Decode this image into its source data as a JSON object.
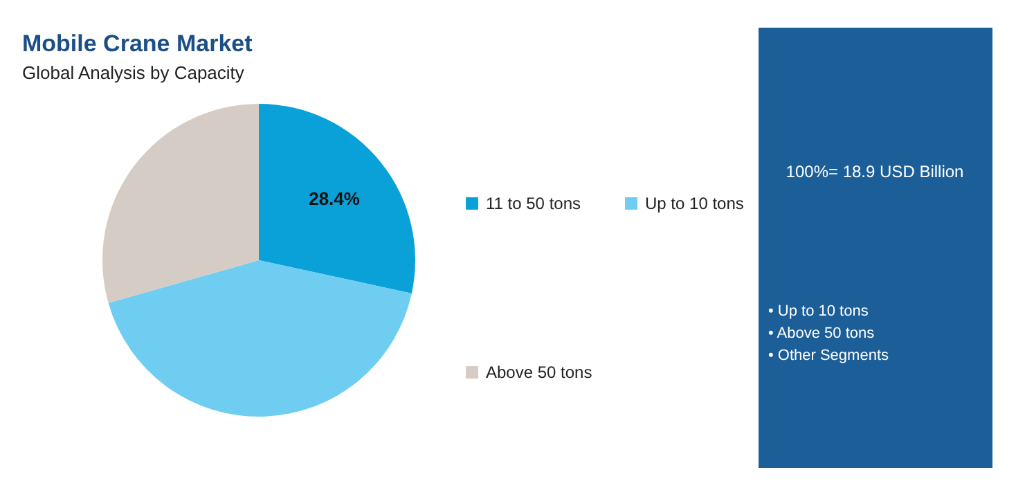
{
  "chart_data": {
    "type": "pie",
    "title": "Mobile Crane Market",
    "subtitle": "Global Analysis by Capacity",
    "categories": [
      "11 to 50 tons",
      "Up to 10 tons",
      "Above 50 tons"
    ],
    "values": [
      28.4,
      42.2,
      29.4
    ],
    "colors": [
      "#0aa0d8",
      "#6fcdf2",
      "#d6ccc6"
    ],
    "value_labels": [
      "28.4%",
      null,
      null
    ],
    "legend": "right",
    "annotations": [
      "100%= 18.9 USD Billion",
      "• Up to 10 tons",
      "• Above 50 tons",
      "• Other Segments"
    ]
  }
}
